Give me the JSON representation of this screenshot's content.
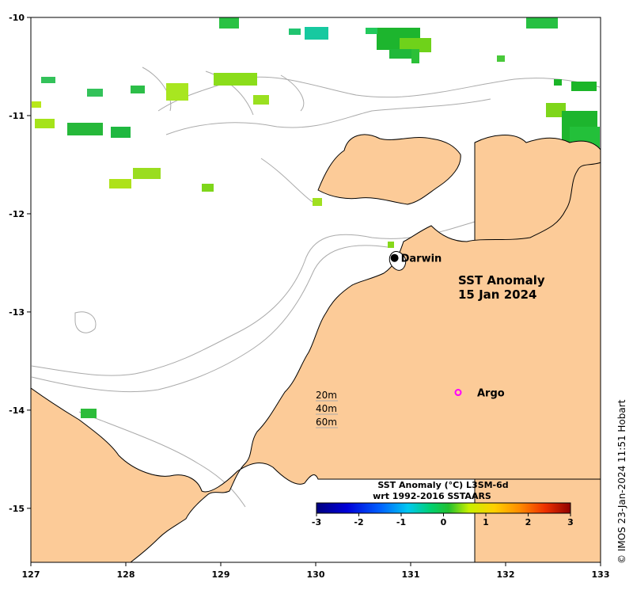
{
  "map": {
    "title_line1": "SST Anomaly",
    "title_line2": "15 Jan 2024",
    "place_label": "Darwin",
    "argo_label": "Argo",
    "contours": [
      "20m",
      "40m",
      "60m"
    ],
    "credit": "© IMOS 23-Jan-2024 11:51 Hobart",
    "x_ticks": [
      "127",
      "128",
      "129",
      "130",
      "131",
      "132",
      "133"
    ],
    "y_ticks": [
      "-10",
      "-11",
      "-12",
      "-13",
      "-14",
      "-15"
    ],
    "lon_range": [
      127,
      133
    ],
    "lat_range": [
      -15.55,
      -10
    ],
    "darwin": {
      "lon": 130.83,
      "lat": -12.45
    },
    "argo": {
      "lon": 131.5,
      "lat": -13.82
    },
    "colorbar": {
      "title_line1": "SST Anomaly (°C) L3SM-6d",
      "title_line2": "wrt 1992-2016 SSTAARS",
      "ticks": [
        "-3",
        "-2",
        "-1",
        "0",
        "1",
        "2",
        "3"
      ],
      "range": [
        -3,
        3
      ]
    },
    "colors": {
      "land": "#fccb98",
      "coast": "#000000",
      "bathymetry": "#aaaaaa",
      "argo": "#ff00ff",
      "darwin": "#000000"
    }
  }
}
